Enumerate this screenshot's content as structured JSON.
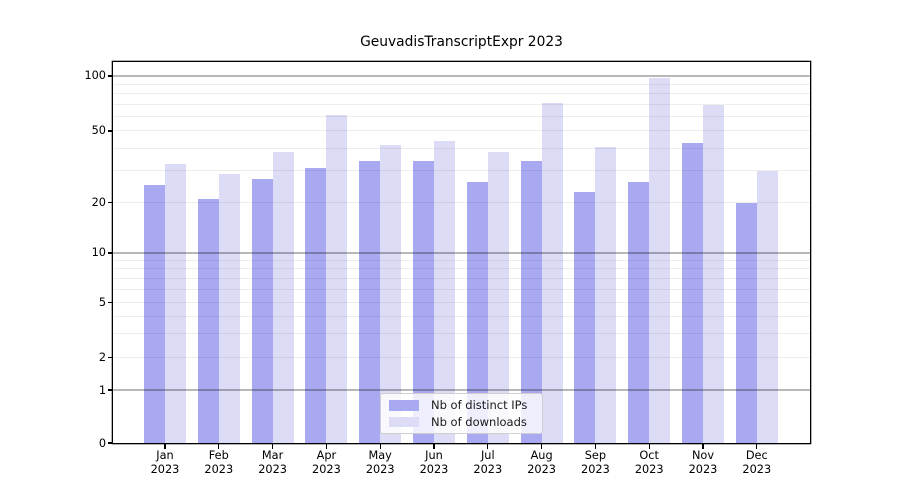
{
  "figure": {
    "title": "GeuvadisTranscriptExpr 2023"
  },
  "colors": {
    "bar_distinct_ips": "#a9a9f1",
    "bar_downloads": "#dcdcf6",
    "grid_minor": "rgba(0,0,0,0.07)",
    "grid_power10": "rgba(0,0,0,0.28)",
    "axis": "#000000",
    "background": "#ffffff"
  },
  "y_axis": {
    "scale": "log-like",
    "ticks": [
      100,
      50,
      20,
      10,
      5,
      2,
      1,
      0
    ],
    "tick_labels": [
      "100",
      "50",
      "20",
      "10",
      "5",
      "2",
      "1",
      "0"
    ],
    "minor_gridlines": [
      2,
      3,
      4,
      5,
      6,
      7,
      8,
      9,
      20,
      30,
      40,
      50,
      60,
      70,
      80,
      90
    ],
    "emphasized_gridlines": [
      1,
      10,
      100
    ]
  },
  "x_axis": {
    "months": [
      "Jan",
      "Feb",
      "Mar",
      "Apr",
      "May",
      "Jun",
      "Jul",
      "Aug",
      "Sep",
      "Oct",
      "Nov",
      "Dec"
    ],
    "year": "2023"
  },
  "legend": {
    "items": [
      {
        "label": "Nb of distinct IPs",
        "color": "#a9a9f1"
      },
      {
        "label": "Nb of downloads",
        "color": "#dcdcf6"
      }
    ]
  },
  "chart_data": {
    "type": "bar",
    "title": "GeuvadisTranscriptExpr 2023",
    "categories": [
      "Jan 2023",
      "Feb 2023",
      "Mar 2023",
      "Apr 2023",
      "May 2023",
      "Jun 2023",
      "Jul 2023",
      "Aug 2023",
      "Sep 2023",
      "Oct 2023",
      "Nov 2023",
      "Dec 2023"
    ],
    "series": [
      {
        "name": "Nb of distinct IPs",
        "color": "#a9a9f1",
        "values": [
          25,
          21,
          27,
          31,
          34,
          34,
          26,
          34,
          23,
          26,
          43,
          20
        ]
      },
      {
        "name": "Nb of downloads",
        "color": "#dcdcf6",
        "values": [
          33,
          29,
          38,
          61,
          42,
          44,
          38,
          71,
          41,
          98,
          69,
          30
        ]
      }
    ],
    "xlabel": "",
    "ylabel": "",
    "yticks": [
      0,
      1,
      2,
      5,
      10,
      20,
      50,
      100
    ],
    "ylim": [
      0,
      110
    ],
    "yscale": "log-like",
    "grid": true,
    "legend_position": "lower-center-inside"
  }
}
